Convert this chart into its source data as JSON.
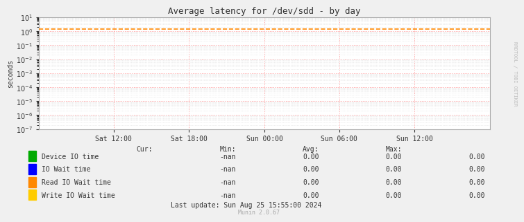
{
  "title": "Average latency for /dev/sdd - by day",
  "ylabel": "seconds",
  "watermark": "RRDTOOL / TOBI OETIKER",
  "munin_version": "Munin 2.0.67",
  "background_color": "#f0f0f0",
  "plot_bg_color": "#ffffff",
  "grid_color_major": "#ff9999",
  "grid_color_minor": "#dddddd",
  "x_ticks": [
    "Sat 12:00",
    "Sat 18:00",
    "Sun 00:00",
    "Sun 06:00",
    "Sun 12:00"
  ],
  "x_tick_positions": [
    0.166,
    0.333,
    0.5,
    0.666,
    0.833
  ],
  "ymin": 1e-07,
  "ymax": 10,
  "dashed_line_y": 1.5,
  "dashed_line_color": "#ff8800",
  "legend_entries": [
    {
      "label": "Device IO time",
      "color": "#00aa00"
    },
    {
      "label": "IO Wait time",
      "color": "#0000ff"
    },
    {
      "label": "Read IO Wait time",
      "color": "#ff8800"
    },
    {
      "label": "Write IO Wait time",
      "color": "#ffcc00"
    }
  ],
  "stats_header": [
    "Cur:",
    "Min:",
    "Avg:",
    "Max:"
  ],
  "stats_values": [
    [
      "-nan",
      "0.00",
      "0.00",
      "0.00"
    ],
    [
      "-nan",
      "0.00",
      "0.00",
      "0.00"
    ],
    [
      "-nan",
      "0.00",
      "0.00",
      "0.00"
    ],
    [
      "-nan",
      "0.00",
      "0.00",
      "0.00"
    ]
  ],
  "last_update": "Last update: Sun Aug 25 15:55:00 2024",
  "font_color": "#333333",
  "tick_font_size": 7,
  "legend_font_size": 7,
  "title_font_size": 9
}
